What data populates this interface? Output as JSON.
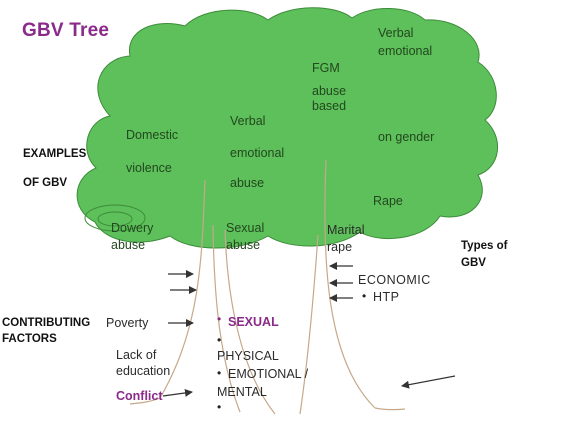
{
  "title": "GBV Tree",
  "colors": {
    "canopy": "#5dc05a",
    "canopy_edge": "#3d8c3a",
    "trunk_line": "#c7a88a",
    "arrow": "#333333",
    "accent": "#8a2a8a"
  },
  "canopy_labels": {
    "domestic": "Domestic",
    "violence": "violence",
    "verbal_1": "Verbal",
    "emotional_1": "emotional",
    "abuse_1": "abuse",
    "fgm": "FGM",
    "abuse_based_1": "abuse",
    "abuse_based_2": "based",
    "verbal_2": "Verbal",
    "emotional_2": "emotional",
    "on_gender": "on gender",
    "rape": "Rape",
    "dowery": "Dowery",
    "dowery_abuse": "abuse",
    "sexual": "Sexual",
    "sexual_abuse": "abuse",
    "marital": "Marital",
    "marital_rape": "rape"
  },
  "examples": {
    "line1": "EXAMPLES",
    "line2": "OF GBV"
  },
  "types": {
    "line1": "Types of",
    "line2": "GBV"
  },
  "contributing": {
    "line1": "CONTRIBUTING",
    "line2": "FACTORS"
  },
  "factors": {
    "poverty": "Poverty",
    "lack_of": "Lack of",
    "education": "education",
    "conflict": "Conflict"
  },
  "type_items": {
    "economic": "ECONOMIC",
    "htp": "HTP",
    "sexual": "SEXUAL",
    "physical": "PHYSICAL",
    "emotional": "EMOTIONAL /",
    "mental": "MENTAL"
  }
}
